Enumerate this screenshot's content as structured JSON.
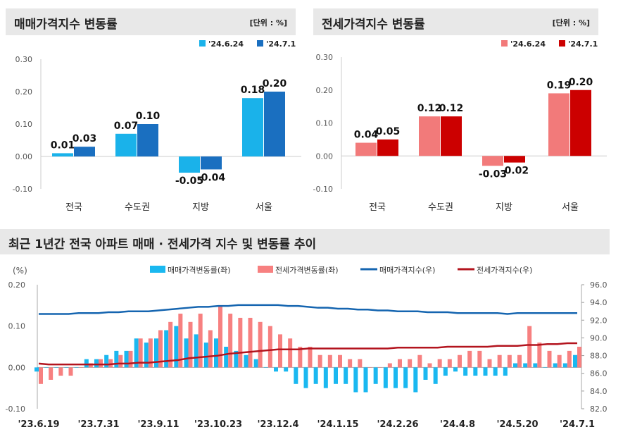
{
  "panels": [
    {
      "title": "매매가격지수 변동률",
      "unit": "[단위 : %]"
    },
    {
      "title": "전세가격지수 변동률",
      "unit": "[단위 : %]"
    }
  ],
  "bottom_title": "최근 1년간 전국 아파트 매매 · 전세가격 지수 및 변동률 추이",
  "chart_data": [
    {
      "type": "bar",
      "title": "매매가격지수 변동률",
      "categories": [
        "전국",
        "수도권",
        "지방",
        "서울"
      ],
      "series": [
        {
          "name": "'24.6.24",
          "color": "#1ab2ea",
          "values": [
            0.01,
            0.07,
            -0.05,
            0.18
          ]
        },
        {
          "name": "'24.7.1",
          "color": "#1a6fc0",
          "values": [
            0.03,
            0.1,
            -0.04,
            0.2
          ]
        }
      ],
      "ylim": [
        -0.1,
        0.3
      ],
      "yticks": [
        "0.30",
        "0.20",
        "0.10",
        "0.00",
        "-0.10"
      ]
    },
    {
      "type": "bar",
      "title": "전세가격지수 변동률",
      "categories": [
        "전국",
        "수도권",
        "지방",
        "서울"
      ],
      "series": [
        {
          "name": "'24.6.24",
          "color": "#f27a7a",
          "values": [
            0.04,
            0.12,
            -0.03,
            0.19
          ]
        },
        {
          "name": "'24.7.1",
          "color": "#cc0000",
          "values": [
            0.05,
            0.12,
            -0.02,
            0.2
          ]
        }
      ],
      "ylim": [
        -0.1,
        0.3
      ],
      "yticks": [
        "0.30",
        "0.20",
        "0.10",
        "0.00",
        "-0.10"
      ]
    },
    {
      "type": "bar+line",
      "ylabel": "(%)",
      "ylim": [
        -0.1,
        0.2
      ],
      "yticks": [
        "0.20",
        "0.10",
        "0.00",
        "-0.10"
      ],
      "y2lim": [
        82,
        96
      ],
      "y2ticks": [
        "96.0",
        "94.0",
        "92.0",
        "90.0",
        "88.0",
        "86.0",
        "84.0",
        "82.0"
      ],
      "xticks": [
        "'23.6.19",
        "'23.7.31",
        "'23.9.11",
        "'23.10.23",
        "'23.12.4",
        "'24.1.15",
        "'24.2.26",
        "'24.4.8",
        "'24.5.20",
        "'24.7.1"
      ],
      "series": [
        {
          "name": "매매가격변동률(좌)",
          "type": "bar",
          "color": "#1ab8f0",
          "values": [
            -0.01,
            0.0,
            0.0,
            0.0,
            0.0,
            0.02,
            0.02,
            0.03,
            0.04,
            0.04,
            0.07,
            0.06,
            0.07,
            0.09,
            0.1,
            0.07,
            0.08,
            0.06,
            0.07,
            0.05,
            0.04,
            0.03,
            0.02,
            0.0,
            -0.01,
            -0.01,
            -0.04,
            -0.05,
            -0.04,
            -0.05,
            -0.04,
            -0.04,
            -0.06,
            -0.06,
            -0.04,
            -0.05,
            -0.05,
            -0.05,
            -0.06,
            -0.03,
            -0.04,
            -0.02,
            -0.01,
            -0.02,
            -0.02,
            -0.02,
            -0.02,
            -0.02,
            0.01,
            0.01,
            0.01,
            0.0,
            0.01,
            0.01,
            0.03
          ]
        },
        {
          "name": "전세가격변동률(좌)",
          "type": "bar",
          "color": "#f78080",
          "values": [
            -0.04,
            -0.03,
            -0.02,
            -0.02,
            0.0,
            0.01,
            0.02,
            0.02,
            0.03,
            0.04,
            0.07,
            0.07,
            0.09,
            0.11,
            0.13,
            0.11,
            0.13,
            0.09,
            0.15,
            0.13,
            0.12,
            0.12,
            0.11,
            0.1,
            0.08,
            0.07,
            0.05,
            0.05,
            0.03,
            0.03,
            0.03,
            0.02,
            0.02,
            0.0,
            0.0,
            0.01,
            0.02,
            0.02,
            0.03,
            0.01,
            0.02,
            0.02,
            0.03,
            0.04,
            0.04,
            0.02,
            0.03,
            0.03,
            0.03,
            0.1,
            0.06,
            0.04,
            0.03,
            0.04,
            0.05
          ]
        },
        {
          "name": "매매가격지수(우)",
          "type": "line",
          "color": "#1565b0",
          "values": [
            92.7,
            92.7,
            92.7,
            92.7,
            92.8,
            92.8,
            92.8,
            92.9,
            92.9,
            93.0,
            93.0,
            93.0,
            93.1,
            93.2,
            93.3,
            93.4,
            93.5,
            93.5,
            93.6,
            93.6,
            93.7,
            93.7,
            93.7,
            93.7,
            93.7,
            93.6,
            93.6,
            93.5,
            93.4,
            93.4,
            93.3,
            93.3,
            93.2,
            93.2,
            93.1,
            93.1,
            93.0,
            93.0,
            93.0,
            92.9,
            92.9,
            92.9,
            92.8,
            92.8,
            92.8,
            92.8,
            92.8,
            92.7,
            92.8,
            92.8,
            92.8,
            92.8,
            92.8,
            92.8,
            92.8
          ]
        },
        {
          "name": "전세가격지수(우)",
          "type": "line",
          "color": "#b3141e",
          "values": [
            87.1,
            87.0,
            87.0,
            87.0,
            87.0,
            87.0,
            87.0,
            87.0,
            87.1,
            87.1,
            87.2,
            87.2,
            87.3,
            87.4,
            87.5,
            87.7,
            87.8,
            87.9,
            88.0,
            88.2,
            88.3,
            88.4,
            88.5,
            88.6,
            88.7,
            88.7,
            88.7,
            88.8,
            88.8,
            88.8,
            88.8,
            88.8,
            88.8,
            88.8,
            88.8,
            88.8,
            88.9,
            88.9,
            88.9,
            88.9,
            88.9,
            89.0,
            89.0,
            89.0,
            89.0,
            89.0,
            89.1,
            89.1,
            89.1,
            89.2,
            89.2,
            89.3,
            89.3,
            89.4,
            89.4
          ]
        }
      ]
    }
  ]
}
